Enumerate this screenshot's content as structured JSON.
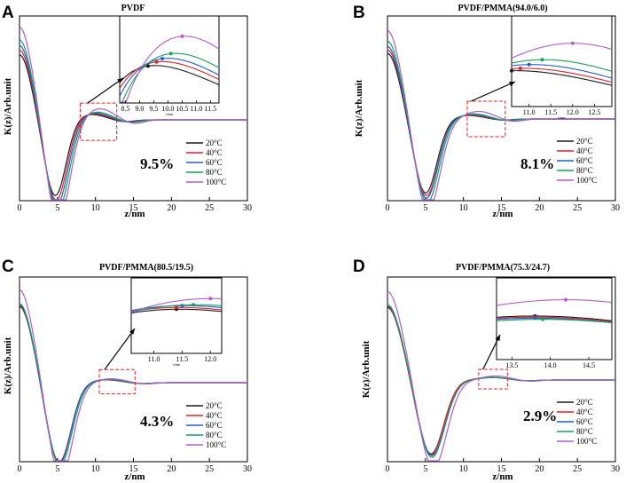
{
  "colors": {
    "20C": "#1a1a1a",
    "40C": "#e0202a",
    "60C": "#1f5fcf",
    "80C": "#16a05a",
    "100C": "#b05cd0",
    "zoom_box": "#e0202a"
  },
  "legend_labels": [
    "20°C",
    "40°C",
    "60°C",
    "80°C",
    "100°C"
  ],
  "chart_data": [
    {
      "type": "line",
      "panel_letter": "A",
      "title": "PVDF",
      "xlabel": "z/nm",
      "ylabel": "K(z)/Arb.unit",
      "xlim": [
        0,
        30
      ],
      "x_ticks": [
        "0",
        "5",
        "10",
        "15",
        "20",
        "25",
        "30"
      ],
      "annotation": "9.5%",
      "series": [
        {
          "name": "20°C",
          "start": 0.7,
          "min_depth": 0.82,
          "min_x": 4.7,
          "peak": 0.06,
          "peak_x": 9.3
        },
        {
          "name": "40°C",
          "start": 0.75,
          "min_depth": 0.87,
          "min_x": 4.8,
          "peak": 0.068,
          "peak_x": 9.6
        },
        {
          "name": "60°C",
          "start": 0.8,
          "min_depth": 0.92,
          "min_x": 4.9,
          "peak": 0.075,
          "peak_x": 9.8
        },
        {
          "name": "80°C",
          "start": 0.86,
          "min_depth": 0.99,
          "min_x": 5.0,
          "peak": 0.085,
          "peak_x": 10.1
        },
        {
          "name": "100°C",
          "start": 1.0,
          "min_depth": 1.1,
          "min_x": 5.1,
          "peak": 0.12,
          "peak_x": 10.5
        }
      ],
      "inset": {
        "x_ticks": [
          "8.5",
          "9.0",
          "9.5",
          "10.0",
          "10.5",
          "11.0",
          "11.5"
        ],
        "xlim": [
          8.3,
          11.8
        ],
        "xlabel": "z/nm"
      }
    },
    {
      "type": "line",
      "panel_letter": "B",
      "title": "PVDF/PMMA(94.0/6.0)",
      "xlabel": "z/nm",
      "ylabel": "K(z)/Arb.unit",
      "xlim": [
        0,
        30
      ],
      "x_ticks": [
        "0",
        "5",
        "10",
        "15",
        "20",
        "25",
        "30"
      ],
      "annotation": "8.1%",
      "series": [
        {
          "name": "20°C",
          "start": 0.74,
          "min_depth": 0.84,
          "min_x": 5.0,
          "peak": 0.04,
          "peak_x": 10.6
        },
        {
          "name": "40°C",
          "start": 0.78,
          "min_depth": 0.87,
          "min_x": 5.1,
          "peak": 0.044,
          "peak_x": 10.8
        },
        {
          "name": "60°C",
          "start": 0.82,
          "min_depth": 0.9,
          "min_x": 5.1,
          "peak": 0.05,
          "peak_x": 11.0
        },
        {
          "name": "80°C",
          "start": 0.88,
          "min_depth": 0.95,
          "min_x": 5.2,
          "peak": 0.058,
          "peak_x": 11.3
        },
        {
          "name": "100°C",
          "start": 1.0,
          "min_depth": 1.05,
          "min_x": 5.3,
          "peak": 0.085,
          "peak_x": 12.0
        }
      ],
      "inset": {
        "x_ticks": [
          "11.0",
          "11.5",
          "12.0",
          "12.5"
        ],
        "xlim": [
          10.6,
          12.9
        ],
        "xlabel": "z/nm"
      }
    },
    {
      "type": "line",
      "panel_letter": "C",
      "title": "PVDF/PMMA(80.5/19.5)",
      "xlabel": "z/nm",
      "ylabel": "K(z)/Arb.unit",
      "xlim": [
        0,
        30
      ],
      "x_ticks": [
        "0",
        "5",
        "10",
        "15",
        "20",
        "25",
        "30"
      ],
      "annotation": "4.3%",
      "series": [
        {
          "name": "20°C",
          "start": 0.82,
          "min_depth": 0.86,
          "min_x": 5.2,
          "peak": 0.03,
          "peak_x": 11.4
        },
        {
          "name": "40°C",
          "start": 0.83,
          "min_depth": 0.87,
          "min_x": 5.2,
          "peak": 0.032,
          "peak_x": 11.4
        },
        {
          "name": "60°C",
          "start": 0.84,
          "min_depth": 0.88,
          "min_x": 5.2,
          "peak": 0.034,
          "peak_x": 11.5
        },
        {
          "name": "80°C",
          "start": 0.85,
          "min_depth": 0.9,
          "min_x": 5.3,
          "peak": 0.035,
          "peak_x": 11.7
        },
        {
          "name": "100°C",
          "start": 1.0,
          "min_depth": 1.02,
          "min_x": 5.4,
          "peak": 0.042,
          "peak_x": 12.0
        }
      ],
      "inset": {
        "x_ticks": [
          "11.0",
          "11.5",
          "12.0"
        ],
        "xlim": [
          10.6,
          12.2
        ],
        "xlabel": "z/nm"
      }
    },
    {
      "type": "line",
      "panel_letter": "D",
      "title": "PVDF/PMMA(75.3/24.7)",
      "xlabel": "z/nm",
      "ylabel": "K(z)/Arb.unit",
      "xlim": [
        0,
        30
      ],
      "x_ticks": [
        "0",
        "5",
        "10",
        "15",
        "20",
        "25",
        "30"
      ],
      "annotation": "2.9%",
      "series": [
        {
          "name": "20°C",
          "start": 0.82,
          "min_depth": 0.84,
          "min_x": 5.7,
          "peak": 0.03,
          "peak_x": 13.8
        },
        {
          "name": "40°C",
          "start": 0.83,
          "min_depth": 0.85,
          "min_x": 5.7,
          "peak": 0.029,
          "peak_x": 13.8
        },
        {
          "name": "60°C",
          "start": 0.84,
          "min_depth": 0.86,
          "min_x": 5.8,
          "peak": 0.028,
          "peak_x": 13.8
        },
        {
          "name": "80°C",
          "start": 0.85,
          "min_depth": 0.88,
          "min_x": 5.8,
          "peak": 0.027,
          "peak_x": 13.9
        },
        {
          "name": "100°C",
          "start": 1.0,
          "min_depth": 1.0,
          "min_x": 6.0,
          "peak": 0.045,
          "peak_x": 14.2
        }
      ],
      "inset": {
        "x_ticks": [
          "13.5",
          "14.0",
          "14.5"
        ],
        "xlim": [
          13.3,
          14.8
        ],
        "xlabel": ""
      }
    }
  ]
}
